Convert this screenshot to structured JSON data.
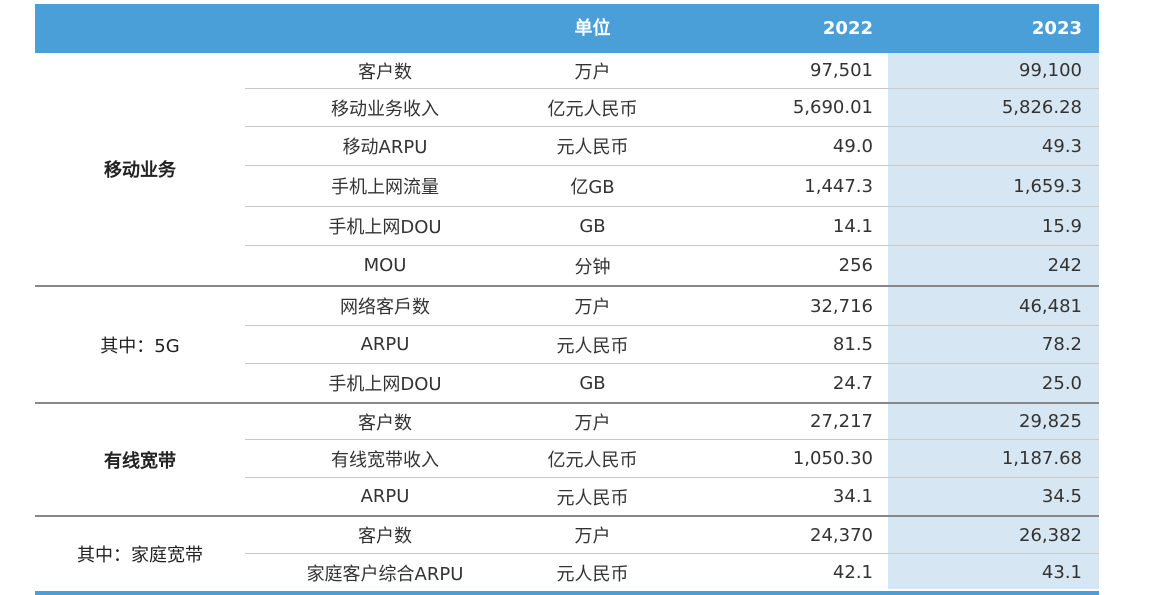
{
  "header": {
    "col_unit": "单位",
    "col_2022": "2022",
    "col_2023": "2023"
  },
  "groups": [
    {
      "label": "移动业务",
      "bold": true,
      "rows": [
        {
          "metric": "客户数",
          "unit": "万户",
          "v2022": "97,501",
          "v2023": "99,100"
        },
        {
          "metric": "移动业务收入",
          "unit": "亿元人民币",
          "v2022": "5,690.01",
          "v2023": "5,826.28"
        },
        {
          "metric": "移动ARPU",
          "unit": "元人民币",
          "v2022": "49.0",
          "v2023": "49.3"
        },
        {
          "metric": "手机上网流量",
          "unit": "亿GB",
          "v2022": "1,447.3",
          "v2023": "1,659.3"
        },
        {
          "metric": "手机上网DOU",
          "unit": "GB",
          "v2022": "14.1",
          "v2023": "15.9"
        },
        {
          "metric": "MOU",
          "unit": "分钟",
          "v2022": "256",
          "v2023": "242"
        }
      ]
    },
    {
      "label": "其中：5G",
      "bold": false,
      "rows": [
        {
          "metric": "网络客戶数",
          "unit": "万户",
          "v2022": "32,716",
          "v2023": "46,481"
        },
        {
          "metric": "ARPU",
          "unit": "元人民币",
          "v2022": "81.5",
          "v2023": "78.2"
        },
        {
          "metric": "手机上网DOU",
          "unit": "GB",
          "v2022": "24.7",
          "v2023": "25.0"
        }
      ]
    },
    {
      "label": "有线宽带",
      "bold": true,
      "rows": [
        {
          "metric": "客户数",
          "unit": "万户",
          "v2022": "27,217",
          "v2023": "29,825"
        },
        {
          "metric": "有线宽带收入",
          "unit": "亿元人民币",
          "v2022": "1,050.30",
          "v2023": "1,187.68"
        },
        {
          "metric": "ARPU",
          "unit": "元人民币",
          "v2022": "34.1",
          "v2023": "34.5"
        }
      ]
    },
    {
      "label": "其中：家庭宽带",
      "bold": false,
      "rows": [
        {
          "metric": "客户数",
          "unit": "万户",
          "v2022": "24,370",
          "v2023": "26,382"
        },
        {
          "metric": "家庭客户综合ARPU",
          "unit": "元人民币",
          "v2022": "42.1",
          "v2023": "43.1"
        }
      ]
    }
  ],
  "colors": {
    "header_bg": "#4a9fd8",
    "header_text": "#ffffff",
    "highlight_col": "#d6e6f2",
    "rule": "#888888"
  }
}
